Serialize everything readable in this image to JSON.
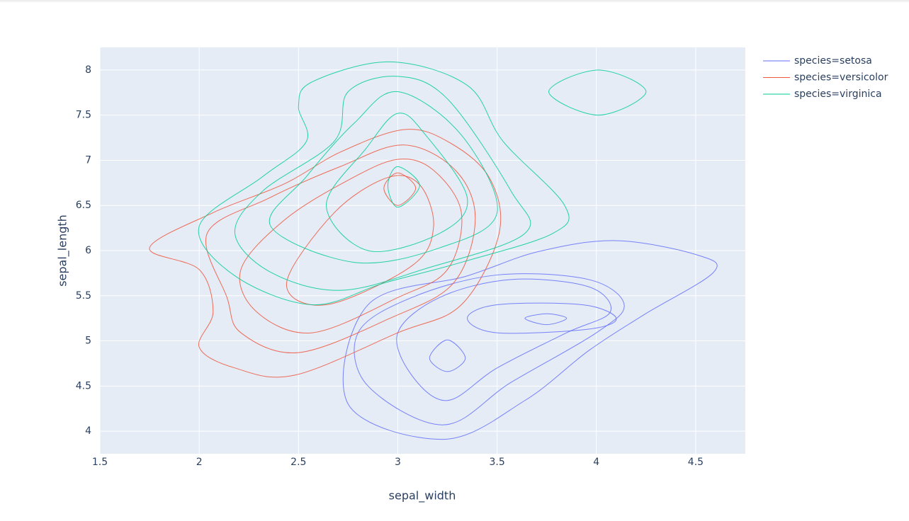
{
  "chart_data": {
    "type": "contour",
    "x_label": "sepal_width",
    "y_label": "sepal_length",
    "xlim": [
      1.5,
      4.75
    ],
    "ylim": [
      3.75,
      8.25
    ],
    "xticks": [
      1.5,
      2,
      2.5,
      3,
      3.5,
      4,
      4.5
    ],
    "yticks": [
      4,
      4.5,
      5,
      5.5,
      6,
      6.5,
      7,
      7.5,
      8
    ],
    "grid": true,
    "legend": "right",
    "series": [
      {
        "name": "species=setosa",
        "color": "#636efa",
        "contours": [
          {
            "x": [
              3.23,
              3.64,
              3.96,
              4.24,
              4.59,
              4.51,
              4.1,
              3.71,
              3.35,
              2.85,
              2.75
            ],
            "y": [
              3.91,
              4.34,
              4.89,
              5.29,
              5.76,
              5.95,
              6.11,
              5.99,
              5.72,
              5.4,
              4.3
            ]
          },
          {
            "x": [
              3.23,
              3.57,
              4.0,
              4.14,
              3.96,
              3.5,
              3.07,
              2.8,
              2.85
            ],
            "y": [
              4.07,
              4.54,
              5.09,
              5.4,
              5.68,
              5.73,
              5.48,
              5.09,
              4.5
            ]
          },
          {
            "x": [
              3.25,
              3.5,
              3.85,
              4.07,
              3.96,
              3.57,
              3.21,
              3.0,
              3.07
            ],
            "y": [
              4.34,
              4.7,
              5.09,
              5.32,
              5.6,
              5.68,
              5.48,
              5.09,
              4.62
            ]
          },
          {
            "x": [
              3.5,
              3.96,
              4.1,
              3.93,
              3.5,
              3.35
            ],
            "y": [
              5.09,
              5.13,
              5.25,
              5.4,
              5.4,
              5.25
            ]
          },
          {
            "x": [
              3.25,
              3.34,
              3.25,
              3.16
            ],
            "y": [
              4.66,
              4.81,
              5.01,
              4.81
            ]
          },
          {
            "x": [
              3.75,
              3.85,
              3.75,
              3.64
            ],
            "y": [
              5.18,
              5.25,
              5.3,
              5.25
            ]
          }
        ]
      },
      {
        "name": "species=versicolor",
        "color": "#ef553b",
        "contours": [
          {
            "x": [
              2.48,
              3.0,
              3.32,
              3.51,
              3.46,
              3.25,
              3.03,
              2.71,
              2.43,
              2.07,
              1.75,
              2.0,
              2.07,
              2.0,
              2.18
            ],
            "y": [
              4.62,
              5.09,
              5.4,
              6.19,
              6.81,
              7.21,
              7.34,
              7.09,
              6.74,
              6.42,
              6.03,
              5.79,
              5.32,
              4.93,
              4.7
            ]
          },
          {
            "x": [
              2.5,
              2.96,
              3.28,
              3.39,
              3.29,
              3.03,
              2.71,
              2.35,
              2.04,
              2.14,
              2.21
            ],
            "y": [
              4.87,
              5.25,
              5.64,
              6.35,
              6.89,
              7.17,
              6.93,
              6.58,
              6.19,
              5.48,
              5.09
            ]
          },
          {
            "x": [
              2.57,
              3.0,
              3.25,
              3.32,
              3.18,
              3.0,
              2.75,
              2.43,
              2.21,
              2.29
            ],
            "y": [
              5.09,
              5.48,
              5.79,
              6.42,
              6.89,
              7.01,
              6.78,
              6.34,
              5.79,
              5.32
            ]
          },
          {
            "x": [
              2.64,
              3.07,
              3.18,
              3.11,
              2.95,
              2.68,
              2.44
            ],
            "y": [
              5.4,
              5.83,
              6.26,
              6.73,
              6.81,
              6.42,
              5.64
            ]
          },
          {
            "x": [
              3.0,
              3.09,
              3.0,
              2.93
            ],
            "y": [
              6.5,
              6.69,
              6.86,
              6.69
            ]
          }
        ]
      },
      {
        "name": "species=virginica",
        "color": "#00cc96",
        "contours": [
          {
            "x": [
              2.57,
              2.93,
              3.32,
              3.78,
              3.84,
              3.53,
              3.35,
              2.96,
              2.57,
              2.5,
              2.54,
              2.32,
              2.0,
              2.18
            ],
            "y": [
              5.4,
              5.64,
              5.87,
              6.19,
              6.5,
              7.21,
              7.83,
              8.09,
              7.87,
              7.6,
              7.21,
              6.82,
              6.27,
              5.72
            ]
          },
          {
            "x": [
              2.71,
              3.14,
              3.64,
              3.57,
              3.25,
              3.0,
              2.75,
              2.68,
              2.32,
              2.18,
              2.36
            ],
            "y": [
              5.56,
              5.8,
              6.19,
              6.66,
              7.68,
              7.93,
              7.76,
              7.21,
              6.66,
              6.19,
              5.76
            ]
          },
          {
            "x": [
              2.78,
              3.21,
              3.5,
              3.32,
              3.0,
              2.78,
              2.54,
              2.36
            ],
            "y": [
              5.87,
              6.03,
              6.42,
              7.28,
              7.76,
              7.41,
              6.82,
              6.27
            ]
          },
          {
            "x": [
              2.85,
              3.21,
              3.35,
              3.14,
              3.0,
              2.84,
              2.64
            ],
            "y": [
              6.0,
              6.19,
              6.58,
              7.28,
              7.52,
              7.13,
              6.5
            ]
          },
          {
            "x": [
              3.0,
              3.11,
              3.0,
              2.95
            ],
            "y": [
              6.48,
              6.72,
              6.93,
              6.72
            ]
          },
          {
            "x": [
              4.01,
              4.25,
              4.01,
              3.76
            ],
            "y": [
              7.5,
              7.76,
              8.0,
              7.76
            ]
          }
        ]
      }
    ]
  }
}
